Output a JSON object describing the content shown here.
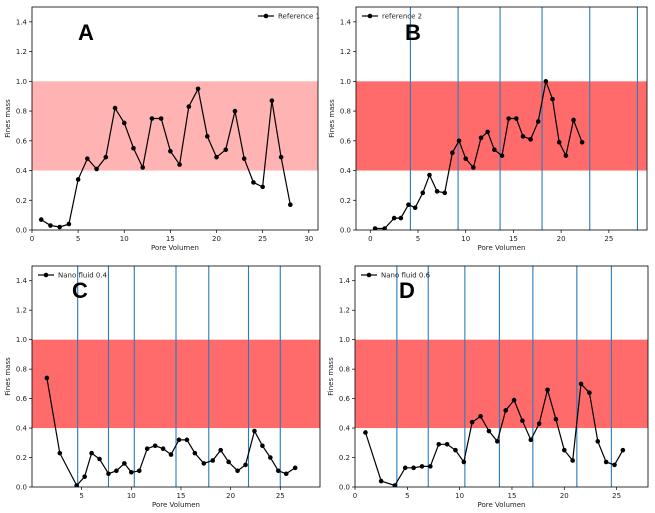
{
  "chart_data": [
    {
      "type": "line",
      "panel_label": "A",
      "xlabel": "Pore Volumen",
      "ylabel": "Fines mass",
      "xlim": [
        0,
        31
      ],
      "ylim": [
        0,
        1.5
      ],
      "xticks": [
        0,
        5,
        10,
        15,
        20,
        25,
        30
      ],
      "xtick_labels": [
        "0",
        "5",
        "10",
        "15",
        "20",
        "25",
        "30"
      ],
      "yticks": [
        0,
        0.2,
        0.4,
        0.6,
        0.8,
        1.0,
        1.2,
        1.4
      ],
      "ytick_labels": [
        "0.0",
        "0.2",
        "0.4",
        "0.6",
        "0.8",
        "1.0",
        "1.2",
        "1.4"
      ],
      "band": {
        "y0": 0.4,
        "y1": 1.0,
        "color": "#ffb3b3"
      },
      "vlines": [],
      "legend": {
        "position": "top-right"
      },
      "series": [
        {
          "name": "Reference 1",
          "color": "#000000",
          "x": [
            1,
            2,
            3,
            4,
            5,
            6,
            7,
            8,
            9,
            10,
            11,
            12,
            13,
            14,
            15,
            16,
            17,
            18,
            19,
            20,
            21,
            22,
            23,
            24,
            25,
            26,
            27,
            28,
            29,
            30
          ],
          "y": [
            0.07,
            0.03,
            0.02,
            0.04,
            0.34,
            0.48,
            0.41,
            0.49,
            0.82,
            0.72,
            0.55,
            0.42,
            0.75,
            0.75,
            0.53,
            0.44,
            0.83,
            0.95,
            0.63,
            0.49,
            0.54,
            0.8,
            0.48,
            0.32,
            0.29,
            0.87,
            0.49,
            0.17,
            null,
            null
          ]
        }
      ]
    },
    {
      "type": "line",
      "panel_label": "B",
      "xlabel": "Pore Volumen",
      "ylabel": "Fines mass",
      "xlim": [
        -1.5,
        29
      ],
      "ylim": [
        0,
        1.5
      ],
      "xticks": [
        0,
        5,
        10,
        15,
        20,
        25
      ],
      "xtick_labels": [
        "0",
        "5",
        "10",
        "15",
        "20",
        "25"
      ],
      "yticks": [
        0,
        0.2,
        0.4,
        0.6,
        0.8,
        1.0,
        1.2,
        1.4
      ],
      "ytick_labels": [
        "0.0",
        "0.2",
        "0.4",
        "0.6",
        "0.8",
        "1.0",
        "1.2",
        "1.4"
      ],
      "band": {
        "y0": 0.4,
        "y1": 1.0,
        "color": "#ff6b6b"
      },
      "vlines": [
        4.2,
        9.2,
        13.6,
        18.0,
        23.0,
        28.0
      ],
      "legend": {
        "position": "top-left"
      },
      "series": [
        {
          "name": "reference 2",
          "color": "#000000",
          "x": [
            0.5,
            1.5,
            2.5,
            3.2,
            4.0,
            4.7,
            5.5,
            6.2,
            7.0,
            7.8,
            8.6,
            9.3,
            10.0,
            10.8,
            11.6,
            12.3,
            13.0,
            13.8,
            14.5,
            15.3,
            16.0,
            16.8,
            17.6,
            18.4,
            19.1,
            19.8,
            20.5,
            21.3,
            22.2,
            22.9,
            23.6
          ],
          "y": [
            0.01,
            0.01,
            0.08,
            0.08,
            0.17,
            0.15,
            0.25,
            0.37,
            0.26,
            0.25,
            0.52,
            0.6,
            0.48,
            0.42,
            0.62,
            0.66,
            0.54,
            0.5,
            0.75,
            0.75,
            0.63,
            0.61,
            0.73,
            1.0,
            0.88,
            0.59,
            0.5,
            0.74,
            0.59,
            null,
            null
          ]
        }
      ]
    },
    {
      "type": "line",
      "panel_label": "C",
      "xlabel": "Pore Volumen",
      "ylabel": "Fines mass",
      "xlim": [
        0,
        29
      ],
      "ylim": [
        0,
        1.5
      ],
      "xticks": [
        5,
        10,
        15,
        20,
        25
      ],
      "xtick_labels": [
        "5",
        "10",
        "15",
        "20",
        "25"
      ],
      "yticks": [
        0,
        0.2,
        0.4,
        0.6,
        0.8,
        1.0,
        1.2,
        1.4
      ],
      "ytick_labels": [
        "0.0",
        "0.2",
        "0.4",
        "0.6",
        "0.8",
        "1.0",
        "1.2",
        "1.4"
      ],
      "band": {
        "y0": 0.4,
        "y1": 1.0,
        "color": "#ff6b6b"
      },
      "vlines": [
        4.6,
        7.7,
        10.3,
        14.5,
        17.8,
        21.8,
        25.0
      ],
      "legend": {
        "position": "top-left"
      },
      "series": [
        {
          "name": "Nano fluid 0.4",
          "color": "#000000",
          "x": [
            1.5,
            2.8,
            4.5,
            5.3,
            6.0,
            6.8,
            7.7,
            8.5,
            9.3,
            10.0,
            10.8,
            11.6,
            12.4,
            13.2,
            14.0,
            14.8,
            15.6,
            16.4,
            17.3,
            18.2,
            19.0,
            19.8,
            20.7,
            21.5,
            22.4,
            23.2,
            24.0,
            24.8,
            25.6,
            26.5
          ],
          "y": [
            0.74,
            0.23,
            0.01,
            0.07,
            0.23,
            0.19,
            0.09,
            0.11,
            0.16,
            0.1,
            0.11,
            0.26,
            0.28,
            0.26,
            0.22,
            0.32,
            0.32,
            0.23,
            0.16,
            0.18,
            0.25,
            0.17,
            0.11,
            0.15,
            0.38,
            0.28,
            0.2,
            0.11,
            0.09,
            0.13
          ]
        }
      ]
    },
    {
      "type": "line",
      "panel_label": "D",
      "xlabel": "Pore Volumen",
      "ylabel": "Fines mass",
      "xlim": [
        0,
        28
      ],
      "ylim": [
        0,
        1.5
      ],
      "xticks": [
        0,
        5,
        10,
        15,
        20,
        25
      ],
      "xtick_labels": [
        "0",
        "5",
        "10",
        "15",
        "20",
        "25"
      ],
      "yticks": [
        0,
        0.2,
        0.4,
        0.6,
        0.8,
        1.0,
        1.2,
        1.4
      ],
      "ytick_labels": [
        "0.0",
        "0.2",
        "0.4",
        "0.6",
        "0.8",
        "1.0",
        "1.2",
        "1.4"
      ],
      "band": {
        "y0": 0.4,
        "y1": 1.0,
        "color": "#ff6b6b"
      },
      "vlines": [
        4.0,
        7.0,
        10.5,
        13.8,
        17.0,
        21.2,
        24.5
      ],
      "legend": {
        "position": "top-left"
      },
      "series": [
        {
          "name": "Nano fluid 0.6",
          "color": "#000000",
          "x": [
            1.0,
            2.5,
            3.8,
            4.8,
            5.6,
            6.4,
            7.2,
            8.0,
            8.8,
            9.6,
            10.4,
            11.2,
            12.0,
            12.8,
            13.6,
            14.4,
            15.2,
            16.0,
            16.8,
            17.6,
            18.4,
            19.2,
            20.0,
            20.8,
            21.6,
            22.4,
            23.2,
            24.0,
            24.8,
            25.6
          ],
          "y": [
            0.37,
            0.04,
            0.01,
            0.13,
            0.13,
            0.14,
            0.14,
            0.29,
            0.29,
            0.25,
            0.17,
            0.44,
            0.48,
            0.38,
            0.31,
            0.52,
            0.59,
            0.45,
            0.32,
            0.43,
            0.66,
            0.46,
            0.25,
            0.18,
            0.7,
            0.64,
            0.31,
            0.17,
            0.15,
            0.25
          ]
        }
      ]
    }
  ]
}
